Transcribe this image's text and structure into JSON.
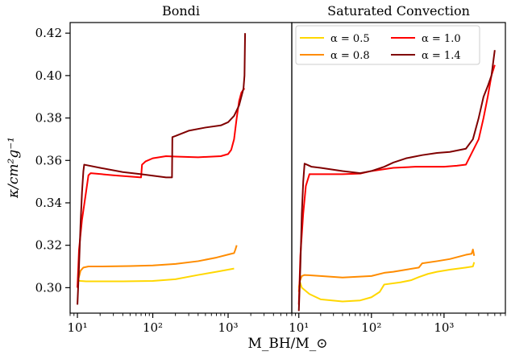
{
  "chart_data": [
    {
      "type": "line",
      "title": "Bondi",
      "xlabel": "M_BH/M_⊙",
      "ylabel": "κ/cm²g⁻¹",
      "xscale": "log",
      "xlim": [
        8,
        7000
      ],
      "ylim": [
        0.288,
        0.425
      ],
      "x_ticks": [
        "10¹",
        "10²",
        "10³"
      ],
      "y_ticks": [
        "0.30",
        "0.32",
        "0.34",
        "0.36",
        "0.38",
        "0.40",
        "0.42"
      ],
      "grid": false,
      "series": [
        {
          "name": "α = 0.5",
          "color": "#ffd700",
          "x": [
            10,
            10.3,
            11,
            13,
            20,
            40,
            100,
            200,
            400,
            700,
            1200
          ],
          "y": [
            0.303,
            0.3033,
            0.3032,
            0.303,
            0.303,
            0.303,
            0.3032,
            0.304,
            0.306,
            0.3075,
            0.309
          ]
        },
        {
          "name": "α = 0.8",
          "color": "#ff8c00",
          "x": [
            10,
            10.3,
            11,
            12,
            14,
            20,
            50,
            100,
            200,
            400,
            700,
            1100,
            1200,
            1250,
            1300
          ],
          "y": [
            0.3,
            0.304,
            0.308,
            0.3095,
            0.31,
            0.31,
            0.3102,
            0.3105,
            0.3112,
            0.3125,
            0.3142,
            0.316,
            0.3163,
            0.318,
            0.32
          ]
        },
        {
          "name": "α = 1.0",
          "color": "#ff0000",
          "x": [
            10,
            10.5,
            11.5,
            13,
            14,
            15,
            30,
            70,
            72,
            80,
            100,
            150,
            200,
            400,
            800,
            1000,
            1100,
            1200,
            1300,
            1400,
            1500,
            1650
          ],
          "y": [
            0.3,
            0.318,
            0.332,
            0.345,
            0.353,
            0.354,
            0.353,
            0.352,
            0.358,
            0.3595,
            0.361,
            0.362,
            0.3618,
            0.3615,
            0.362,
            0.363,
            0.365,
            0.37,
            0.38,
            0.388,
            0.392,
            0.394
          ]
        },
        {
          "name": "α = 1.4",
          "color": "#800000",
          "x": [
            10,
            10.5,
            11,
            11.5,
            12,
            12.3,
            20,
            40,
            70,
            100,
            150,
            180,
            182,
            200,
            300,
            500,
            800,
            1000,
            1200,
            1400,
            1550,
            1600,
            1650,
            1680
          ],
          "y": [
            0.292,
            0.31,
            0.33,
            0.345,
            0.355,
            0.358,
            0.3565,
            0.3545,
            0.3535,
            0.3528,
            0.352,
            0.352,
            0.371,
            0.3715,
            0.374,
            0.3755,
            0.3765,
            0.378,
            0.381,
            0.386,
            0.392,
            0.394,
            0.4,
            0.42
          ]
        }
      ]
    },
    {
      "type": "line",
      "title": "Saturated Convection",
      "xlabel": "M_BH/M_⊙",
      "xscale": "log",
      "xlim": [
        8,
        7000
      ],
      "ylim": [
        0.288,
        0.425
      ],
      "x_ticks": [
        "10¹",
        "10²",
        "10³"
      ],
      "grid": false,
      "legend": {
        "placement": "top-right",
        "columns": 2
      },
      "series": [
        {
          "name": "α = 0.5",
          "color": "#ffd700",
          "x": [
            10,
            10.3,
            11,
            14,
            20,
            40,
            70,
            100,
            130,
            150,
            250,
            350,
            450,
            600,
            800,
            1200,
            2000,
            2500,
            2600
          ],
          "y": [
            0.3,
            0.303,
            0.3,
            0.297,
            0.2945,
            0.2935,
            0.294,
            0.2955,
            0.298,
            0.3015,
            0.3025,
            0.3035,
            0.305,
            0.3065,
            0.3075,
            0.3085,
            0.3095,
            0.31,
            0.312
          ]
        },
        {
          "name": "α = 0.8",
          "color": "#ff8c00",
          "x": [
            10,
            10.3,
            11,
            12,
            20,
            40,
            100,
            150,
            200,
            300,
            450,
            500,
            800,
            1200,
            2000,
            2400,
            2500,
            2600
          ],
          "y": [
            0.298,
            0.303,
            0.3055,
            0.306,
            0.3055,
            0.3048,
            0.3055,
            0.307,
            0.3075,
            0.3085,
            0.3095,
            0.3115,
            0.3125,
            0.3135,
            0.3155,
            0.316,
            0.318,
            0.315
          ]
        },
        {
          "name": "α = 1.0",
          "color": "#ff0000",
          "x": [
            10,
            10.5,
            11.5,
            12.5,
            14,
            20,
            40,
            70,
            100,
            200,
            400,
            700,
            1000,
            1500,
            2000,
            3000,
            3500,
            4000,
            4500,
            5000
          ],
          "y": [
            0.292,
            0.315,
            0.335,
            0.348,
            0.3535,
            0.3535,
            0.3535,
            0.3538,
            0.355,
            0.3565,
            0.357,
            0.357,
            0.357,
            0.3575,
            0.358,
            0.37,
            0.38,
            0.39,
            0.4,
            0.405
          ]
        },
        {
          "name": "α = 1.4",
          "color": "#800000",
          "x": [
            10,
            10.5,
            11,
            11.5,
            12,
            15,
            20,
            40,
            70,
            100,
            150,
            200,
            300,
            500,
            800,
            1200,
            2000,
            2500,
            3000,
            3500,
            4000,
            4500,
            5000
          ],
          "y": [
            0.289,
            0.31,
            0.335,
            0.35,
            0.3585,
            0.357,
            0.3565,
            0.355,
            0.354,
            0.355,
            0.357,
            0.359,
            0.361,
            0.3625,
            0.3635,
            0.364,
            0.3655,
            0.37,
            0.38,
            0.39,
            0.395,
            0.4,
            0.412
          ]
        }
      ]
    }
  ]
}
